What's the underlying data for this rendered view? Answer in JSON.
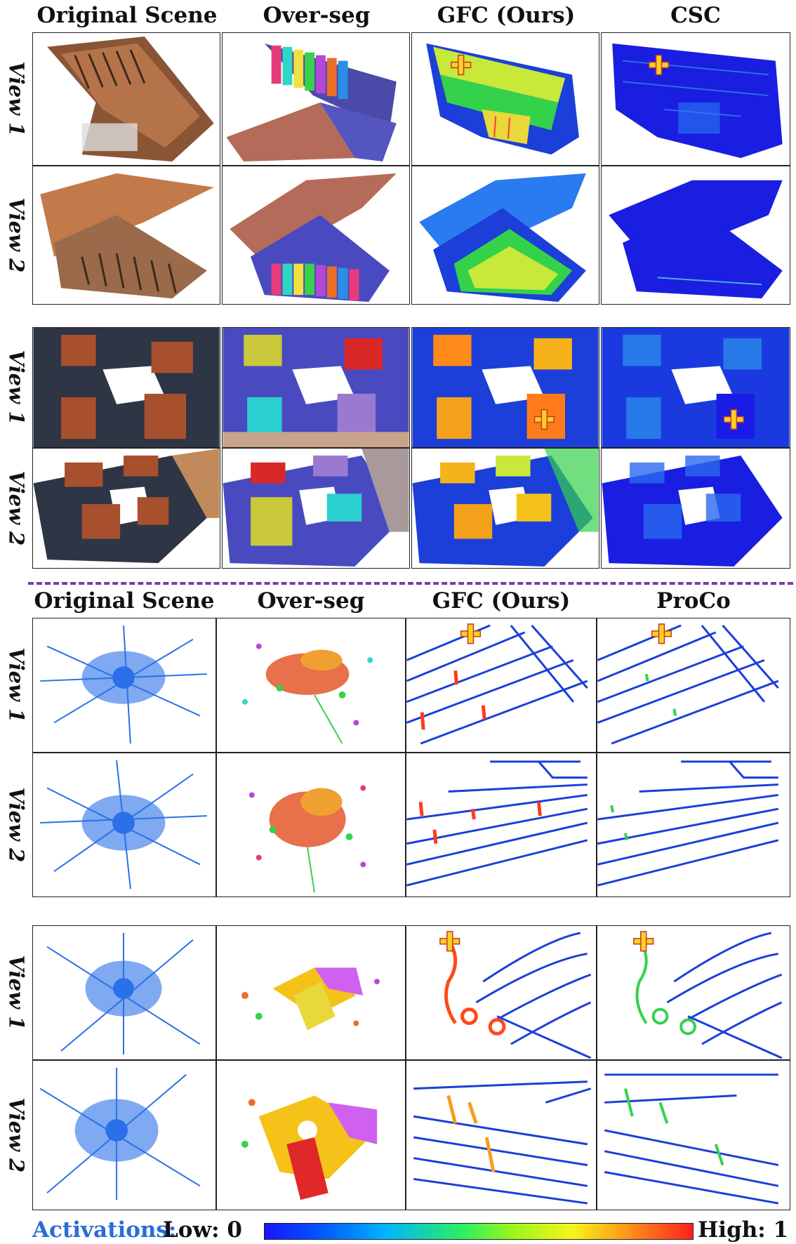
{
  "top_section": {
    "headers": [
      "Original Scene",
      "Over-seg",
      "GFC (Ours)",
      "CSC"
    ],
    "rows": [
      "View 1",
      "View 2",
      "View 1",
      "View 2"
    ]
  },
  "bottom_section": {
    "headers": [
      "Original Scene",
      "Over-seg",
      "GFC (Ours)",
      "ProCo"
    ],
    "rows": [
      "View 1",
      "View 2",
      "View 1",
      "View 2"
    ]
  },
  "legend": {
    "title": "Activations:",
    "low": "Low: 0",
    "high": "High: 1",
    "colors": [
      "#1a13ff",
      "#005bff",
      "#00b3ff",
      "#2af061",
      "#9cf51a",
      "#f5f51a",
      "#ff8a1a",
      "#ff1f1f"
    ]
  },
  "icons": {
    "query_marker": "plus-marker-icon"
  }
}
